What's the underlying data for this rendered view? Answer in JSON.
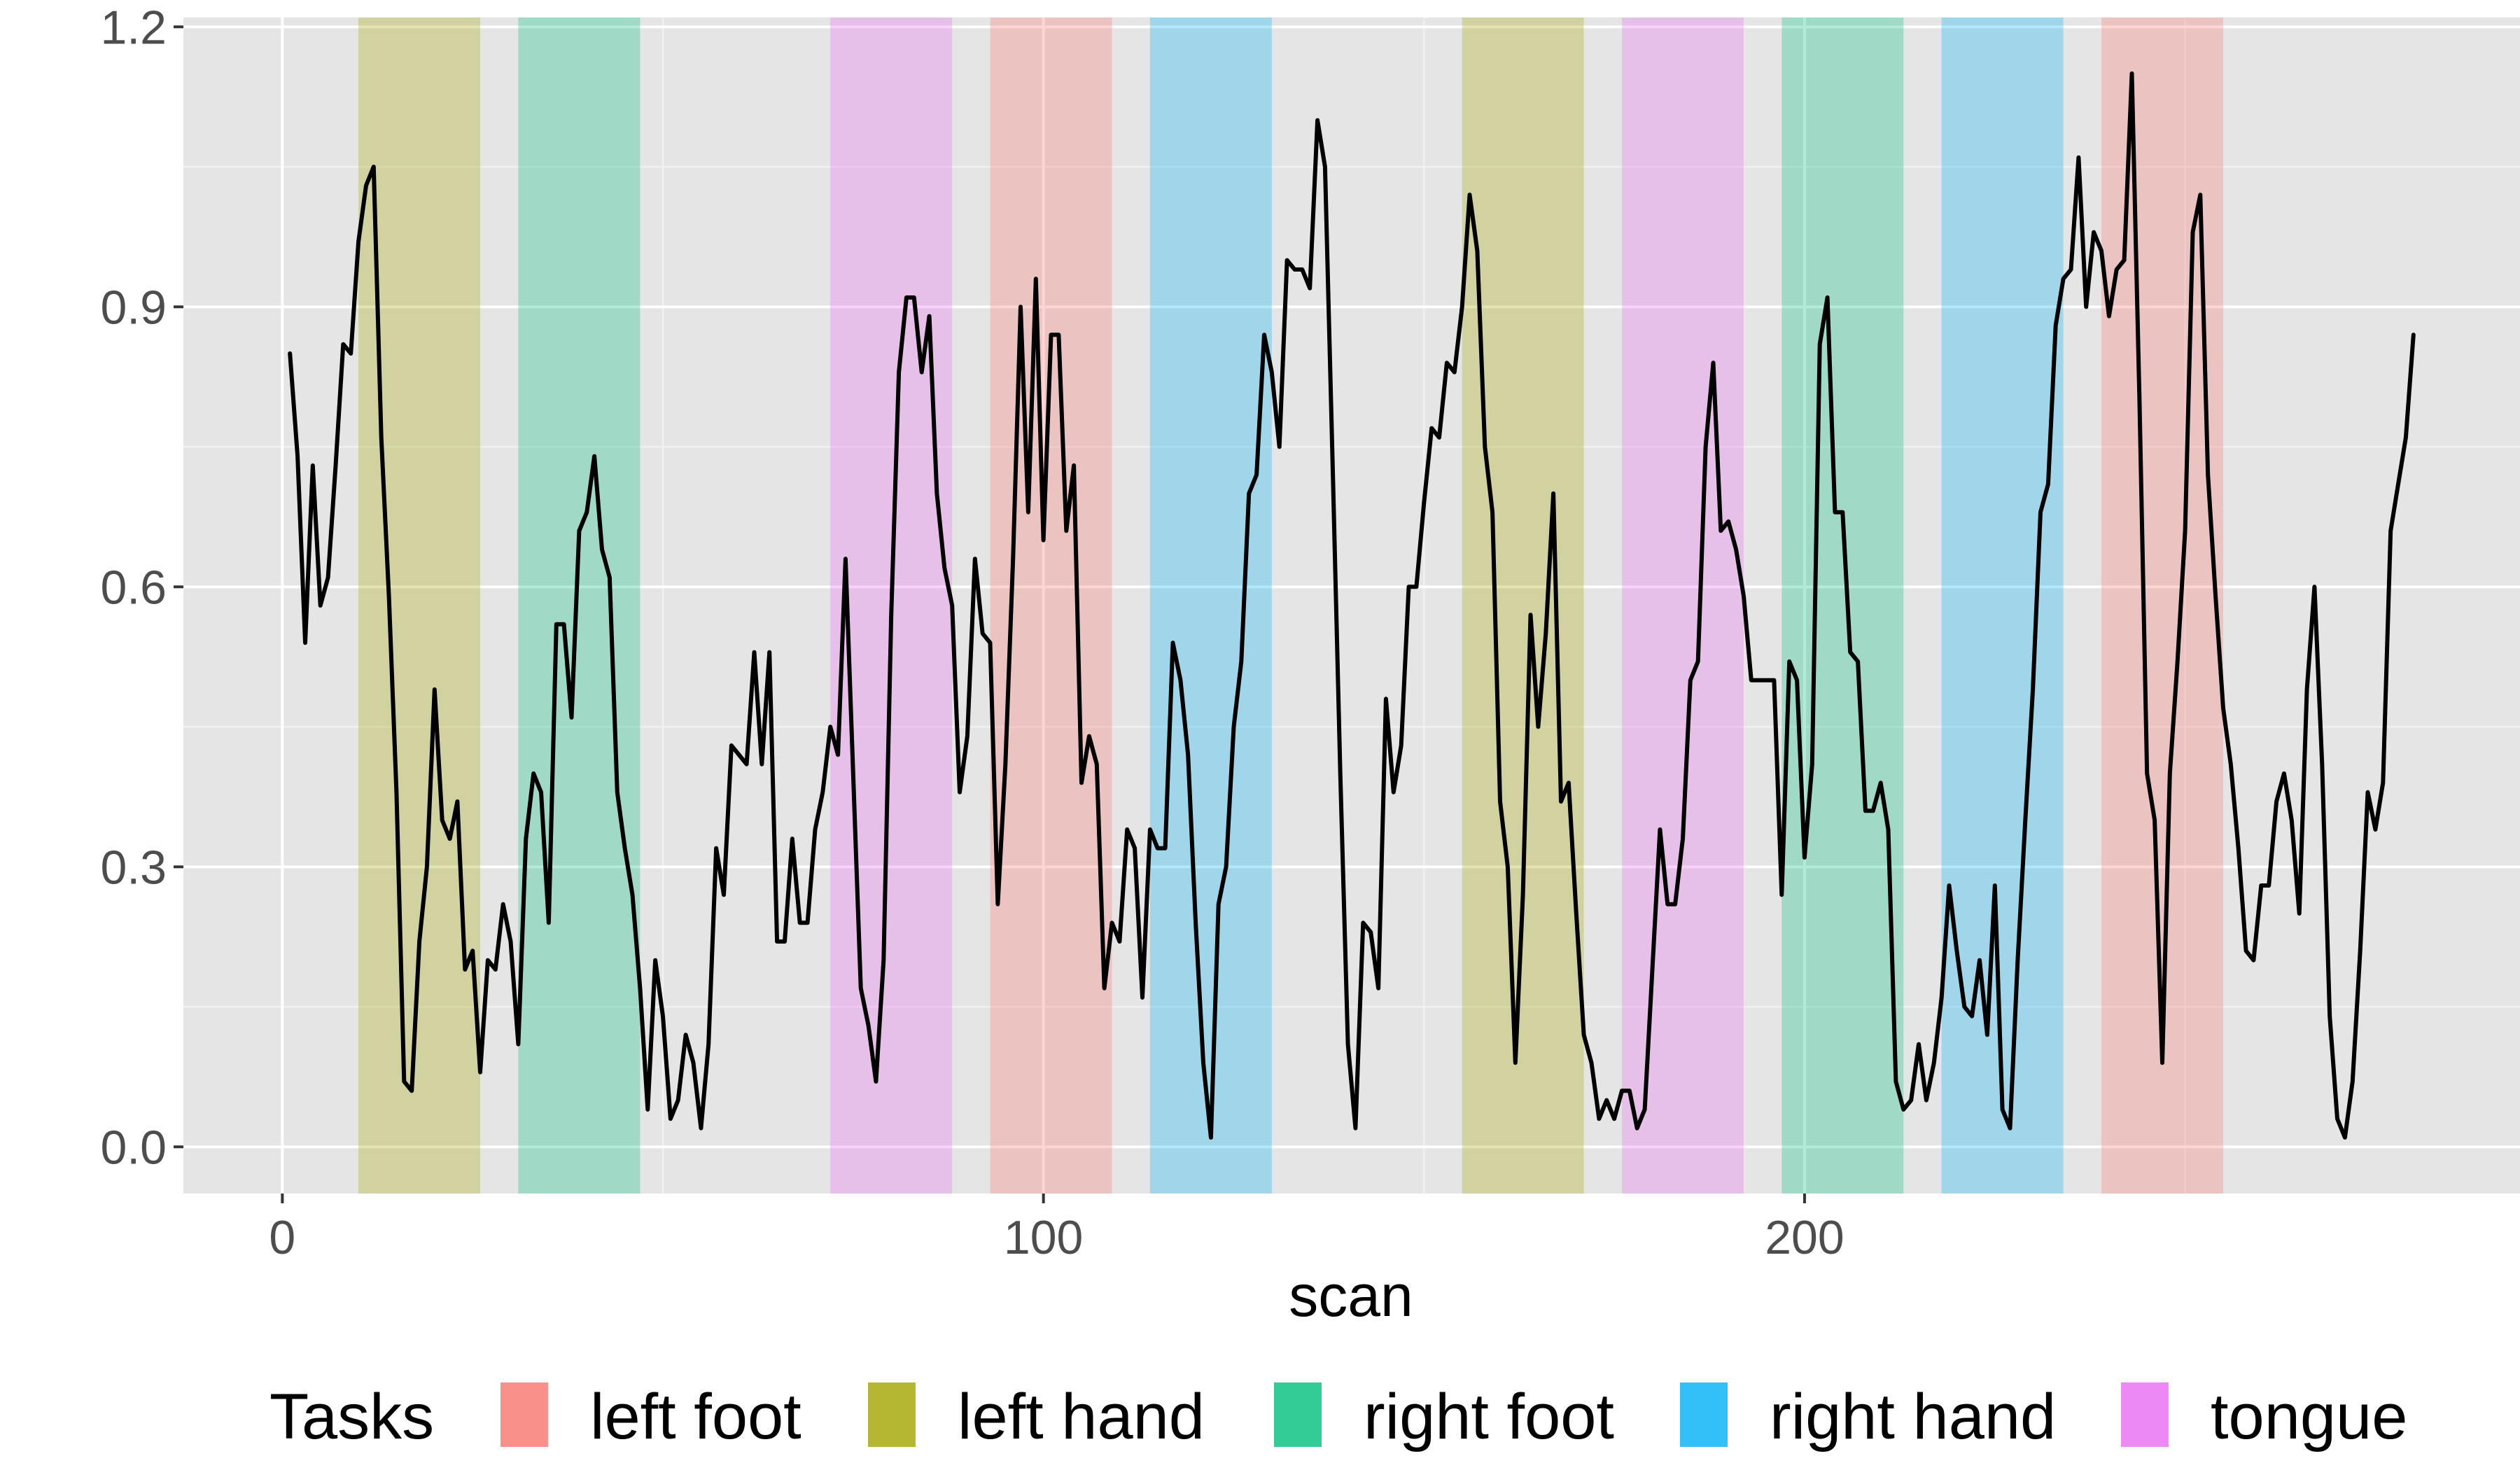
{
  "chart_data": {
    "type": "line",
    "title": "",
    "xlabel": "scan",
    "ylabel": "",
    "xlim": [
      -13,
      294
    ],
    "ylim": [
      -0.05,
      1.21
    ],
    "x_ticks": [
      0,
      100,
      200
    ],
    "x_tick_labels": [
      "0",
      "100",
      "200"
    ],
    "y_ticks": [
      0.0,
      0.3,
      0.6,
      0.9,
      1.2
    ],
    "y_tick_labels": [
      "0.0",
      "0.3",
      "0.6",
      "0.9",
      "1.2"
    ],
    "grid": true,
    "panel_background": "#e5e5e5",
    "line_color": "#000000",
    "legend": {
      "title": "Tasks",
      "placement": "bottom",
      "entries": [
        {
          "label": "left foot",
          "color": "#f8766d"
        },
        {
          "label": "left hand",
          "color": "#a3a500"
        },
        {
          "label": "right foot",
          "color": "#00bf7d"
        },
        {
          "label": "right hand",
          "color": "#00b0f6"
        },
        {
          "label": "tongue",
          "color": "#e76bf3"
        }
      ]
    },
    "task_blocks": [
      {
        "task": "left hand",
        "start": 10,
        "end": 26
      },
      {
        "task": "right foot",
        "start": 31,
        "end": 47
      },
      {
        "task": "tongue",
        "start": 72,
        "end": 88
      },
      {
        "task": "left foot",
        "start": 93,
        "end": 109
      },
      {
        "task": "right hand",
        "start": 114,
        "end": 130
      },
      {
        "task": "left hand",
        "start": 155,
        "end": 171
      },
      {
        "task": "tongue",
        "start": 176,
        "end": 192
      },
      {
        "task": "right foot",
        "start": 197,
        "end": 213
      },
      {
        "task": "right hand",
        "start": 218,
        "end": 234
      },
      {
        "task": "left foot",
        "start": 239,
        "end": 255
      }
    ],
    "series": [
      {
        "x_start": 1,
        "x_step": 1,
        "values": [
          0.85,
          0.74,
          0.54,
          0.73,
          0.58,
          0.61,
          0.73,
          0.86,
          0.85,
          0.97,
          1.03,
          1.05,
          0.76,
          0.59,
          0.38,
          0.07,
          0.06,
          0.22,
          0.3,
          0.49,
          0.35,
          0.33,
          0.37,
          0.19,
          0.21,
          0.08,
          0.2,
          0.19,
          0.26,
          0.22,
          0.11,
          0.33,
          0.4,
          0.38,
          0.24,
          0.56,
          0.56,
          0.46,
          0.66,
          0.68,
          0.74,
          0.64,
          0.61,
          0.38,
          0.32,
          0.27,
          0.17,
          0.04,
          0.2,
          0.14,
          0.03,
          0.05,
          0.12,
          0.09,
          0.02,
          0.11,
          0.32,
          0.27,
          0.43,
          0.42,
          0.41,
          0.53,
          0.41,
          0.53,
          0.22,
          0.22,
          0.33,
          0.24,
          0.24,
          0.34,
          0.38,
          0.45,
          0.42,
          0.63,
          0.4,
          0.17,
          0.13,
          0.07,
          0.2,
          0.57,
          0.83,
          0.91,
          0.91,
          0.83,
          0.89,
          0.7,
          0.62,
          0.58,
          0.38,
          0.44,
          0.63,
          0.55,
          0.54,
          0.26,
          0.41,
          0.63,
          0.9,
          0.68,
          0.93,
          0.65,
          0.87,
          0.87,
          0.66,
          0.73,
          0.39,
          0.44,
          0.41,
          0.17,
          0.24,
          0.22,
          0.34,
          0.32,
          0.16,
          0.34,
          0.32,
          0.32,
          0.54,
          0.5,
          0.42,
          0.24,
          0.09,
          0.01,
          0.26,
          0.3,
          0.45,
          0.52,
          0.7,
          0.72,
          0.87,
          0.83,
          0.75,
          0.95,
          0.94,
          0.94,
          0.92,
          1.1,
          1.05,
          0.73,
          0.4,
          0.11,
          0.02,
          0.24,
          0.23,
          0.17,
          0.48,
          0.38,
          0.43,
          0.6,
          0.6,
          0.69,
          0.77,
          0.76,
          0.84,
          0.83,
          0.9,
          1.02,
          0.96,
          0.75,
          0.68,
          0.37,
          0.3,
          0.09,
          0.27,
          0.57,
          0.45,
          0.55,
          0.7,
          0.37,
          0.39,
          0.25,
          0.12,
          0.09,
          0.03,
          0.05,
          0.03,
          0.06,
          0.06,
          0.02,
          0.04,
          0.19,
          0.34,
          0.26,
          0.26,
          0.33,
          0.5,
          0.52,
          0.75,
          0.84,
          0.66,
          0.67,
          0.64,
          0.59,
          0.5,
          0.5,
          0.5,
          0.5,
          0.27,
          0.52,
          0.5,
          0.31,
          0.41,
          0.86,
          0.91,
          0.68,
          0.68,
          0.53,
          0.52,
          0.36,
          0.36,
          0.39,
          0.34,
          0.07,
          0.04,
          0.05,
          0.11,
          0.05,
          0.09,
          0.16,
          0.28,
          0.21,
          0.15,
          0.14,
          0.2,
          0.12,
          0.28,
          0.04,
          0.02,
          0.2,
          0.35,
          0.49,
          0.68,
          0.71,
          0.88,
          0.93,
          0.94,
          1.06,
          0.9,
          0.98,
          0.96,
          0.89,
          0.94,
          0.95,
          1.15,
          0.8,
          0.4,
          0.35,
          0.09,
          0.4,
          0.52,
          0.66,
          0.98,
          1.02,
          0.72,
          0.59,
          0.47,
          0.41,
          0.32,
          0.21,
          0.2,
          0.28,
          0.28,
          0.37,
          0.4,
          0.35,
          0.25,
          0.49,
          0.6,
          0.41,
          0.14,
          0.03,
          0.01,
          0.07,
          0.21,
          0.38,
          0.34,
          0.39,
          0.66,
          0.71,
          0.76,
          0.87
        ]
      }
    ]
  }
}
